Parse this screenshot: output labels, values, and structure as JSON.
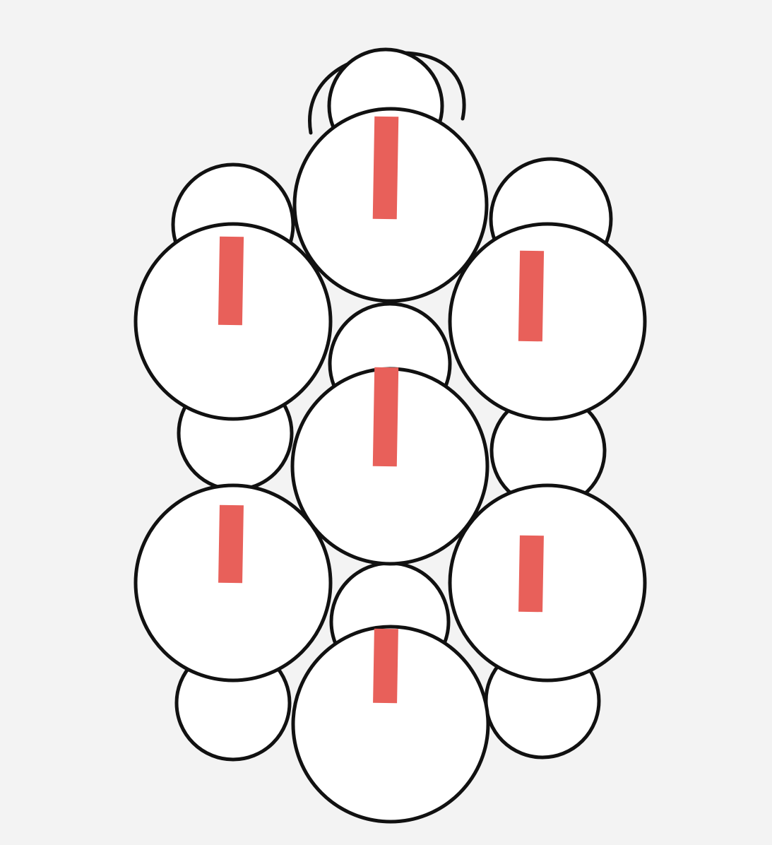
{
  "colors": {
    "background": "#f3f3f3",
    "outline": "#111111",
    "fill": "#ffffff",
    "marker": "#e8605a"
  },
  "rings": [
    {
      "id": "top"
    },
    {
      "id": "upper-left"
    },
    {
      "id": "upper-right"
    },
    {
      "id": "center"
    },
    {
      "id": "lower-left"
    },
    {
      "id": "lower-right"
    },
    {
      "id": "bottom"
    }
  ],
  "beads": [
    {
      "id": "hanging-top"
    },
    {
      "id": "upper-left-small"
    },
    {
      "id": "upper-right-small"
    },
    {
      "id": "center-upper-small"
    },
    {
      "id": "middle-left-small"
    },
    {
      "id": "middle-right-small"
    },
    {
      "id": "center-lower-small"
    },
    {
      "id": "bottom-left-small"
    },
    {
      "id": "bottom-right-small"
    }
  ]
}
